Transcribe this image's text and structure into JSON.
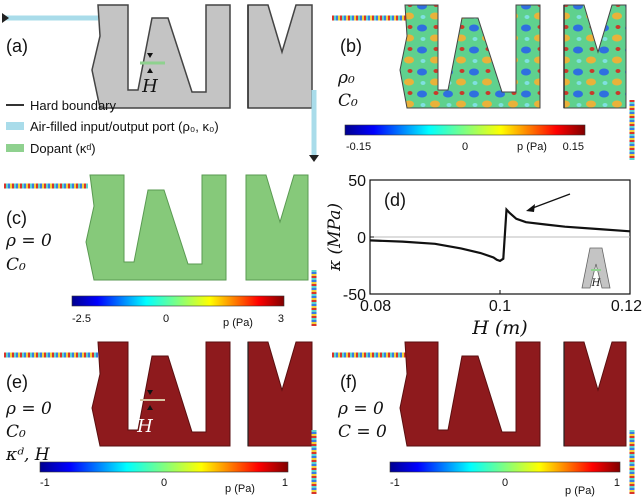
{
  "panels": {
    "a": {
      "label": "(a)",
      "h_symbol": "H",
      "legend": [
        {
          "text": "Hard boundary",
          "swatch": "#333333"
        },
        {
          "text": "Air-filled input/output port (ρ₀, κ₀)",
          "swatch": "#a9dcea"
        },
        {
          "text": "Dopant (κᵈ)",
          "swatch": "#8fd18f"
        }
      ]
    },
    "b": {
      "label": "(b)",
      "params": [
        "ρ₀",
        "C₀"
      ],
      "colorbar": {
        "ticks": [
          "-0.15",
          "0",
          "0.15"
        ],
        "unit": "p (Pa)"
      }
    },
    "c": {
      "label": "(c)",
      "params": [
        "ρ = 0",
        "C₀"
      ],
      "colorbar": {
        "ticks": [
          "-2.5",
          "0",
          "3"
        ],
        "unit": "p (Pa)"
      }
    },
    "d": {
      "label": "(d)",
      "inset_symbol": "H"
    },
    "e": {
      "label": "(e)",
      "h_symbol": "H",
      "params": [
        "ρ = 0",
        "C₀",
        "κᵈ, H"
      ],
      "colorbar": {
        "ticks": [
          "-1",
          "0",
          "1"
        ],
        "unit": "p (Pa)"
      }
    },
    "f": {
      "label": "(f)",
      "params": [
        "ρ = 0",
        "C = 0"
      ],
      "colorbar": {
        "ticks": [
          "-1",
          "0",
          "1"
        ],
        "unit": "p (Pa)"
      }
    }
  },
  "colors": {
    "shape_gray": "#c4c4c4",
    "outline": "#444444",
    "port": "#a9dcea",
    "dopant": "#8fd18f",
    "green_fill": "#86c97a",
    "dark_red": "#8e1a1d",
    "curve": "#111111"
  },
  "chart_data": {
    "type": "line",
    "title": "",
    "xlabel": "H (m)",
    "ylabel": "κ (MPa)",
    "xlim": [
      0.08,
      0.12
    ],
    "ylim": [
      -50,
      50
    ],
    "xticks": [
      "0.08",
      "0.1",
      "0.12"
    ],
    "yticks": [
      "50",
      "0",
      "-50"
    ],
    "grid": false,
    "reference_line_y": 0,
    "series": [
      {
        "x": [
          0.08,
          0.085,
          0.09,
          0.094,
          0.097,
          0.099,
          0.0995,
          0.1,
          0.1005,
          0.101,
          0.1015,
          0.1025,
          0.104,
          0.107,
          0.11,
          0.115,
          0.12
        ],
        "y": [
          -3,
          -4,
          -6,
          -10,
          -14,
          -18,
          -20,
          -21,
          -19,
          24,
          21,
          16,
          13,
          11,
          9,
          7,
          5
        ]
      }
    ]
  }
}
